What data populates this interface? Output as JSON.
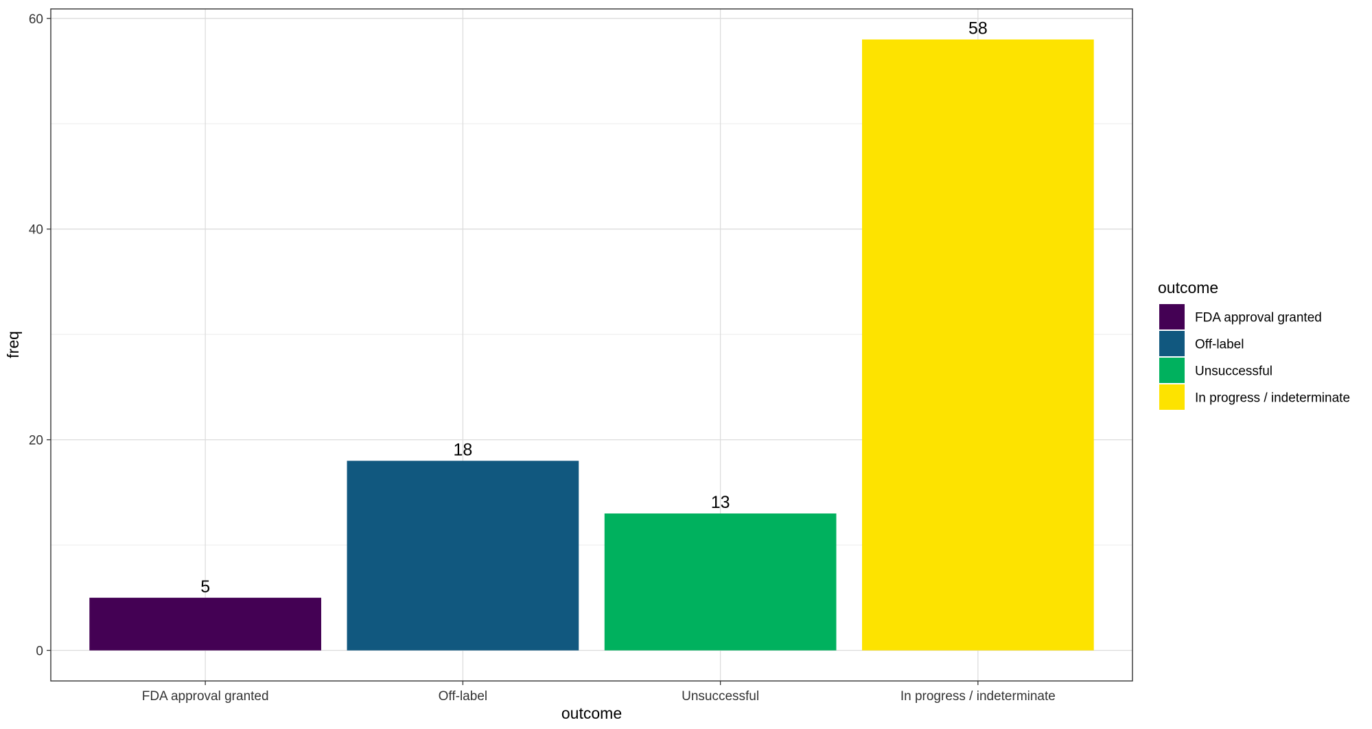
{
  "chart_data": {
    "type": "bar",
    "categories": [
      "FDA approval granted",
      "Off-label",
      "Unsuccessful",
      "In progress / indeterminate"
    ],
    "values": [
      5,
      18,
      13,
      58
    ],
    "colors": [
      "#440154",
      "#11587F",
      "#00B15E",
      "#FDE300"
    ],
    "xlabel": "outcome",
    "ylabel": "freq",
    "ylim": [
      -2.9,
      60.9
    ],
    "yticks": [
      0,
      20,
      40,
      60
    ],
    "grid": true,
    "legend": {
      "title": "outcome",
      "position": "right",
      "items": [
        "FDA approval granted",
        "Off-label",
        "Unsuccessful",
        "In progress / indeterminate"
      ]
    }
  }
}
